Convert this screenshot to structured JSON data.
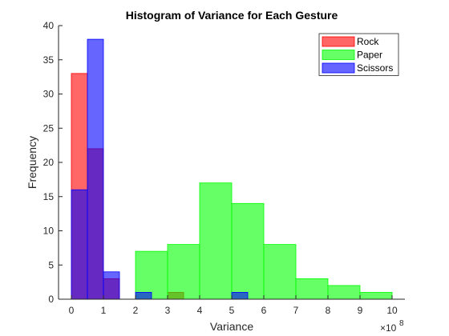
{
  "chart_data": {
    "type": "bar",
    "title": "Histogram of Variance for Each Gesture",
    "xlabel": "Variance",
    "ylabel": "Frequency",
    "x_exponent_label": "×10",
    "x_exponent_power": "8",
    "xlim": [
      -0.4,
      10.4
    ],
    "ylim": [
      0,
      40
    ],
    "xticks": [
      "0",
      "1",
      "2",
      "3",
      "4",
      "5",
      "6",
      "7",
      "8",
      "9",
      "10"
    ],
    "yticks": [
      "0",
      "5",
      "10",
      "15",
      "20",
      "25",
      "30",
      "35",
      "40"
    ],
    "grid": false,
    "legend_position": "top-right",
    "series": [
      {
        "name": "Rock",
        "color": "#ff0000",
        "bins": [
          {
            "x0": 0,
            "x1": 0.5,
            "count": 33
          },
          {
            "x0": 0.5,
            "x1": 1.0,
            "count": 22
          },
          {
            "x0": 1.0,
            "x1": 1.5,
            "count": 3
          },
          {
            "x0": 3.0,
            "x1": 3.5,
            "count": 1
          }
        ]
      },
      {
        "name": "Paper",
        "color": "#00ff00",
        "bins": [
          {
            "x0": 2.0,
            "x1": 3.0,
            "count": 7
          },
          {
            "x0": 3.0,
            "x1": 4.0,
            "count": 8
          },
          {
            "x0": 4.0,
            "x1": 5.0,
            "count": 17
          },
          {
            "x0": 5.0,
            "x1": 6.0,
            "count": 14
          },
          {
            "x0": 6.0,
            "x1": 7.0,
            "count": 8
          },
          {
            "x0": 7.0,
            "x1": 8.0,
            "count": 3
          },
          {
            "x0": 8.0,
            "x1": 9.0,
            "count": 2
          },
          {
            "x0": 9.0,
            "x1": 10.0,
            "count": 1
          }
        ]
      },
      {
        "name": "Scissors",
        "color": "#0000ff",
        "bins": [
          {
            "x0": 0,
            "x1": 0.5,
            "count": 16
          },
          {
            "x0": 0.5,
            "x1": 1.0,
            "count": 38
          },
          {
            "x0": 1.0,
            "x1": 1.5,
            "count": 4
          },
          {
            "x0": 2.0,
            "x1": 2.5,
            "count": 1
          },
          {
            "x0": 5.0,
            "x1": 5.5,
            "count": 1
          }
        ]
      }
    ]
  }
}
